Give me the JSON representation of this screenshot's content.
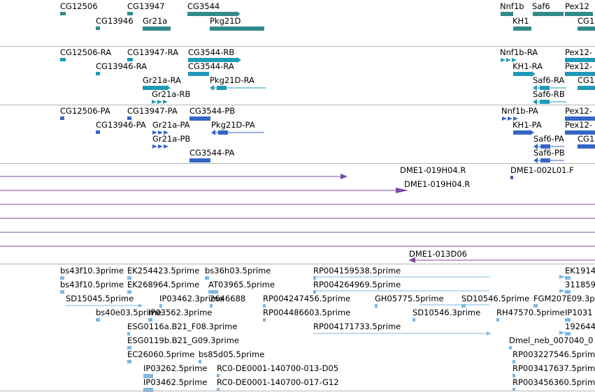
{
  "colors": {
    "gene": "#348a8a",
    "transcript": "#1f9ab8",
    "protein": "#3566c7",
    "clone": "#7a4aa0",
    "est": "#7fb8e0",
    "separator": "#b5b5b5"
  },
  "tracks": [
    {
      "name": "genes",
      "color": "#348a8a",
      "items": [
        {
          "label": "CG12506"
        },
        {
          "label": "CG13947"
        },
        {
          "label": "CG3544"
        },
        {
          "label": "CG13946"
        },
        {
          "label": "Gr21a"
        },
        {
          "label": "Pkg21D"
        },
        {
          "label": "Nnf1b"
        },
        {
          "label": "Saf6"
        },
        {
          "label": "Pex12"
        },
        {
          "label": "KH1"
        },
        {
          "label": "CG1"
        }
      ]
    },
    {
      "name": "transcripts",
      "color": "#1f9ab8",
      "items": [
        {
          "label": "CG12506-RA"
        },
        {
          "label": "CG13947-RA"
        },
        {
          "label": "CG3544-RB"
        },
        {
          "label": "CG13946-RA"
        },
        {
          "label": "CG3544-RA"
        },
        {
          "label": "Gr21a-RA"
        },
        {
          "label": "Pkg21D-RA"
        },
        {
          "label": "Gr21a-RB"
        },
        {
          "label": "Nnf1b-RA"
        },
        {
          "label": "Pex12-"
        },
        {
          "label": "KH1-RA"
        },
        {
          "label": "Pex12-"
        },
        {
          "label": "Saf6-RA"
        },
        {
          "label": "CG1"
        },
        {
          "label": "Saf6-RB"
        }
      ]
    },
    {
      "name": "proteins",
      "color": "#3566c7",
      "items": [
        {
          "label": "CG12506-PA"
        },
        {
          "label": "CG13947-PA"
        },
        {
          "label": "CG3544-PB"
        },
        {
          "label": "CG13946-PA"
        },
        {
          "label": "Gr21a-PA"
        },
        {
          "label": "Pkg21D-PA"
        },
        {
          "label": "Gr21a-PB"
        },
        {
          "label": "CG3544-PA"
        },
        {
          "label": "Nnf1b-PA"
        },
        {
          "label": "Pex12-"
        },
        {
          "label": "KH1-PA"
        },
        {
          "label": "Pex12-"
        },
        {
          "label": "Saf6-PA"
        },
        {
          "label": "CG1"
        },
        {
          "label": "Saf6-PB"
        }
      ]
    },
    {
      "name": "clones",
      "color": "#7a4aa0",
      "items": [
        {
          "label": "DME1-019H04.R"
        },
        {
          "label": "DME1-002L01.F"
        },
        {
          "label": "DME1-019H04.R"
        },
        {
          "label": "DME1-013D06"
        }
      ]
    },
    {
      "name": "ests",
      "color": "#7fb8e0",
      "items": [
        {
          "label": "bs43f10.3prime"
        },
        {
          "label": "EK254423.5prime"
        },
        {
          "label": "bs36h03.5prime"
        },
        {
          "label": "RP004159538.5prime"
        },
        {
          "label": "EK1914"
        },
        {
          "label": "bs43f10.5prime"
        },
        {
          "label": "EK268964.5prime"
        },
        {
          "label": "AT03965.5prime"
        },
        {
          "label": "RP004264969.5prime"
        },
        {
          "label": "311859"
        },
        {
          "label": "SD15045.5prime"
        },
        {
          "label": "IP03462.3prime"
        },
        {
          "label": "2646688"
        },
        {
          "label": "RP004247456.5prime"
        },
        {
          "label": "GH05775.5prime"
        },
        {
          "label": "SD10546.5prime"
        },
        {
          "label": "FGM207E09.3p"
        },
        {
          "label": "bs40e03.5prime"
        },
        {
          "label": "IP03562.3prime"
        },
        {
          "label": "RP004486603.5prime"
        },
        {
          "label": "SD10546.3prime"
        },
        {
          "label": "RH47570.5prime"
        },
        {
          "label": "IP1031"
        },
        {
          "label": "ESG0116a.B21_F08.3prime"
        },
        {
          "label": "RP004171733.5prime"
        },
        {
          "label": "192644"
        },
        {
          "label": "ESG0119b.B21_G09.3prime"
        },
        {
          "label": "Dmel_neb_007040_0"
        },
        {
          "label": "EC26060.5prime"
        },
        {
          "label": "bs85d05.5prime"
        },
        {
          "label": "RP003227546.5prime"
        },
        {
          "label": "IP03262.5prime"
        },
        {
          "label": "RC0-DE0001-140700-013-D05"
        },
        {
          "label": "RP003417637.5prime"
        },
        {
          "label": "IP03462.5prime"
        },
        {
          "label": "RC0-DE0001-140700-017-G12"
        },
        {
          "label": "RP003456360.5prime"
        }
      ]
    }
  ]
}
